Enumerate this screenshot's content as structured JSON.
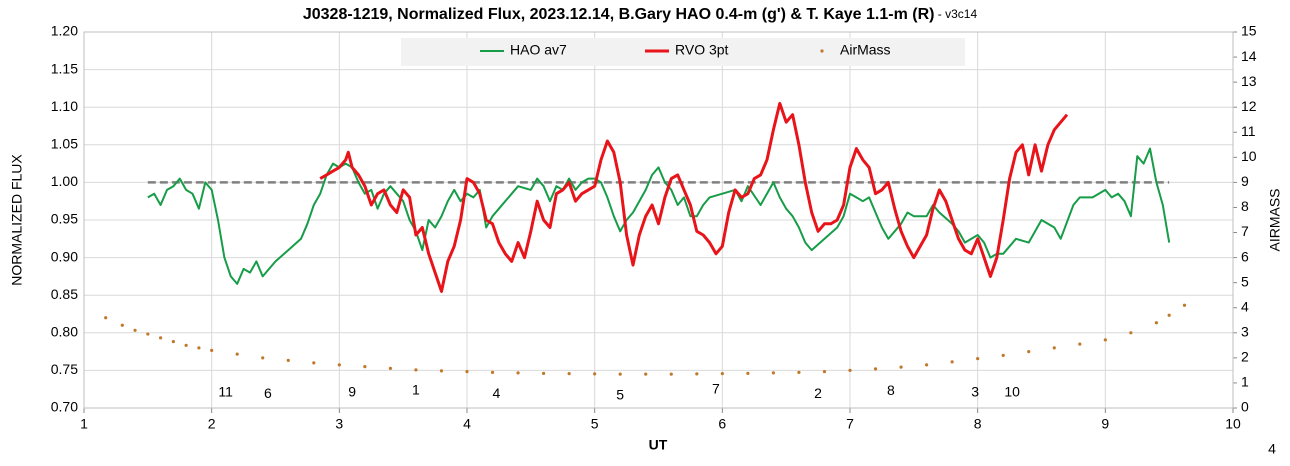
{
  "chart_data": {
    "type": "line",
    "title": "J0328-1219, Normalized Flux, 2023.12.14, B.Gary HAO 0.4-m (g') & T. Kaye 1.1-m (R)",
    "subtitle": " - v3c14",
    "x_label": "UT",
    "y_label": "NORMALIZED FLUX",
    "y2_label": "AIRMASS",
    "corner_note": "4",
    "xlim": [
      1,
      10
    ],
    "xticks": [
      1,
      2,
      3,
      4,
      5,
      6,
      7,
      8,
      9,
      10
    ],
    "ylim": [
      0.7,
      1.2
    ],
    "yticks": [
      {
        "value": 0.7,
        "label": "0.70"
      },
      {
        "value": 0.75,
        "label": "0.75"
      },
      {
        "value": 0.8,
        "label": "0.80"
      },
      {
        "value": 0.85,
        "label": "0.85"
      },
      {
        "value": 0.9,
        "label": "0.90"
      },
      {
        "value": 0.95,
        "label": "0.95"
      },
      {
        "value": 1.0,
        "label": "1.00"
      },
      {
        "value": 1.05,
        "label": "1.05"
      },
      {
        "value": 1.1,
        "label": "1.10"
      },
      {
        "value": 1.15,
        "label": "1.15"
      },
      {
        "value": 1.2,
        "label": "1.20"
      }
    ],
    "y2lim": [
      0,
      15
    ],
    "y2ticks": [
      0,
      1,
      2,
      3,
      4,
      5,
      6,
      7,
      8,
      9,
      10,
      11,
      12,
      13,
      14,
      15
    ],
    "grid": true,
    "legend": "top",
    "reference_line": {
      "value": 1.0,
      "x": [
        1.5,
        9.5
      ],
      "color": "#808080"
    },
    "series": [
      {
        "name": "HAO av7",
        "color": "#179c48",
        "style": "line",
        "x": [
          1.5,
          1.55,
          1.6,
          1.65,
          1.7,
          1.75,
          1.8,
          1.85,
          1.9,
          1.95,
          2.0,
          2.05,
          2.1,
          2.15,
          2.2,
          2.25,
          2.3,
          2.35,
          2.4,
          2.45,
          2.5,
          2.6,
          2.7,
          2.75,
          2.8,
          2.85,
          2.9,
          2.95,
          3.0,
          3.05,
          3.1,
          3.15,
          3.2,
          3.25,
          3.3,
          3.35,
          3.4,
          3.5,
          3.55,
          3.6,
          3.65,
          3.7,
          3.75,
          3.8,
          3.85,
          3.9,
          3.95,
          4.0,
          4.05,
          4.1,
          4.15,
          4.2,
          4.3,
          4.4,
          4.5,
          4.55,
          4.6,
          4.65,
          4.7,
          4.75,
          4.8,
          4.85,
          4.9,
          4.95,
          5.0,
          5.05,
          5.1,
          5.15,
          5.2,
          5.25,
          5.3,
          5.4,
          5.45,
          5.5,
          5.55,
          5.6,
          5.65,
          5.7,
          5.75,
          5.8,
          5.85,
          5.9,
          6.0,
          6.1,
          6.15,
          6.2,
          6.3,
          6.4,
          6.45,
          6.5,
          6.55,
          6.6,
          6.65,
          6.7,
          6.8,
          6.9,
          6.95,
          7.0,
          7.05,
          7.1,
          7.15,
          7.2,
          7.25,
          7.3,
          7.35,
          7.4,
          7.45,
          7.5,
          7.6,
          7.65,
          7.7,
          7.8,
          7.85,
          7.9,
          8.0,
          8.05,
          8.1,
          8.15,
          8.2,
          8.3,
          8.4,
          8.5,
          8.6,
          8.65,
          8.75,
          8.8,
          8.9,
          9.0,
          9.05,
          9.1,
          9.15,
          9.2,
          9.25,
          9.3,
          9.35,
          9.4,
          9.45,
          9.5
        ],
        "values": [
          0.98,
          0.985,
          0.97,
          0.99,
          0.995,
          1.005,
          0.99,
          0.985,
          0.965,
          1.0,
          0.99,
          0.95,
          0.9,
          0.875,
          0.865,
          0.885,
          0.88,
          0.895,
          0.875,
          0.885,
          0.895,
          0.91,
          0.925,
          0.945,
          0.97,
          0.985,
          1.01,
          1.025,
          1.02,
          1.025,
          1.02,
          1.0,
          0.985,
          0.99,
          0.965,
          0.985,
          0.995,
          0.975,
          0.95,
          0.935,
          0.91,
          0.95,
          0.94,
          0.955,
          0.975,
          0.99,
          0.975,
          0.985,
          0.98,
          0.99,
          0.94,
          0.955,
          0.975,
          0.995,
          0.99,
          1.005,
          0.995,
          0.975,
          0.995,
          0.99,
          1.005,
          0.99,
          1.0,
          1.005,
          1.005,
          1.0,
          0.98,
          0.955,
          0.935,
          0.95,
          0.96,
          0.99,
          1.01,
          1.02,
          1.0,
          0.99,
          0.97,
          0.98,
          0.955,
          0.955,
          0.97,
          0.98,
          0.985,
          0.99,
          0.975,
          0.995,
          0.97,
          1.0,
          0.98,
          0.965,
          0.955,
          0.94,
          0.92,
          0.91,
          0.925,
          0.94,
          0.955,
          0.985,
          0.98,
          0.975,
          0.98,
          0.96,
          0.94,
          0.925,
          0.935,
          0.945,
          0.96,
          0.955,
          0.955,
          0.97,
          0.96,
          0.945,
          0.935,
          0.92,
          0.93,
          0.92,
          0.9,
          0.905,
          0.905,
          0.925,
          0.92,
          0.95,
          0.94,
          0.925,
          0.97,
          0.98,
          0.98,
          0.99,
          0.98,
          0.985,
          0.975,
          0.955,
          1.035,
          1.025,
          1.045,
          1.0,
          0.97,
          0.92
        ]
      },
      {
        "name": "RVO 3pt",
        "color": "#e8141a",
        "style": "line",
        "x": [
          2.85,
          2.9,
          2.95,
          3.0,
          3.05,
          3.07,
          3.1,
          3.15,
          3.2,
          3.25,
          3.3,
          3.35,
          3.4,
          3.45,
          3.5,
          3.55,
          3.6,
          3.65,
          3.7,
          3.75,
          3.8,
          3.85,
          3.9,
          3.95,
          4.0,
          4.05,
          4.1,
          4.15,
          4.2,
          4.25,
          4.3,
          4.35,
          4.4,
          4.45,
          4.5,
          4.55,
          4.6,
          4.65,
          4.7,
          4.75,
          4.8,
          4.85,
          4.9,
          5.0,
          5.05,
          5.1,
          5.15,
          5.2,
          5.25,
          5.3,
          5.35,
          5.4,
          5.45,
          5.5,
          5.55,
          5.6,
          5.65,
          5.7,
          5.75,
          5.8,
          5.85,
          5.9,
          5.95,
          6.0,
          6.05,
          6.1,
          6.15,
          6.2,
          6.25,
          6.3,
          6.35,
          6.4,
          6.45,
          6.5,
          6.55,
          6.6,
          6.65,
          6.7,
          6.75,
          6.8,
          6.85,
          6.9,
          6.95,
          7.0,
          7.05,
          7.1,
          7.15,
          7.2,
          7.25,
          7.3,
          7.35,
          7.4,
          7.45,
          7.5,
          7.55,
          7.6,
          7.65,
          7.7,
          7.75,
          7.8,
          7.85,
          7.9,
          7.95,
          8.0,
          8.05,
          8.1,
          8.15,
          8.2,
          8.25,
          8.3,
          8.35,
          8.4,
          8.45,
          8.5,
          8.55,
          8.6,
          8.65,
          8.7
        ],
        "values": [
          1.005,
          1.01,
          1.015,
          1.02,
          1.03,
          1.04,
          1.02,
          1.01,
          0.995,
          0.97,
          0.985,
          0.99,
          0.97,
          0.96,
          0.99,
          0.98,
          0.93,
          0.94,
          0.905,
          0.88,
          0.855,
          0.895,
          0.915,
          0.95,
          1.005,
          1.0,
          0.985,
          0.95,
          0.945,
          0.92,
          0.905,
          0.895,
          0.92,
          0.9,
          0.935,
          0.975,
          0.95,
          0.94,
          0.985,
          0.99,
          1.0,
          0.975,
          0.985,
          0.995,
          1.03,
          1.055,
          1.04,
          1.0,
          0.93,
          0.89,
          0.93,
          0.955,
          0.97,
          0.945,
          0.98,
          1.005,
          1.01,
          0.99,
          0.97,
          0.935,
          0.93,
          0.92,
          0.905,
          0.915,
          0.96,
          0.99,
          0.98,
          0.985,
          1.005,
          1.01,
          1.03,
          1.07,
          1.105,
          1.08,
          1.09,
          1.05,
          1.0,
          0.96,
          0.935,
          0.945,
          0.945,
          0.95,
          0.97,
          1.02,
          1.045,
          1.03,
          1.02,
          0.985,
          0.99,
          1.0,
          0.965,
          0.935,
          0.915,
          0.9,
          0.915,
          0.93,
          0.965,
          0.99,
          0.975,
          0.95,
          0.925,
          0.91,
          0.905,
          0.925,
          0.9,
          0.875,
          0.9,
          0.95,
          1.005,
          1.04,
          1.05,
          1.01,
          1.05,
          1.015,
          1.05,
          1.07,
          1.08,
          1.09
        ]
      },
      {
        "name": "AirMass",
        "color": "#c0782a",
        "style": "markers",
        "axis": "y2",
        "x": [
          1.17,
          1.3,
          1.4,
          1.5,
          1.6,
          1.7,
          1.8,
          1.9,
          2.0,
          2.2,
          2.4,
          2.6,
          2.8,
          3.0,
          3.2,
          3.4,
          3.6,
          3.8,
          4.0,
          4.2,
          4.4,
          4.6,
          4.8,
          5.0,
          5.2,
          5.4,
          5.6,
          5.8,
          6.0,
          6.2,
          6.4,
          6.6,
          6.8,
          7.0,
          7.2,
          7.4,
          7.6,
          7.8,
          8.0,
          8.2,
          8.4,
          8.6,
          8.8,
          9.0,
          9.2,
          9.4,
          9.5,
          9.62
        ],
        "values": [
          3.6,
          3.3,
          3.1,
          2.95,
          2.8,
          2.65,
          2.5,
          2.4,
          2.3,
          2.15,
          2.0,
          1.9,
          1.8,
          1.72,
          1.65,
          1.58,
          1.52,
          1.48,
          1.45,
          1.42,
          1.4,
          1.38,
          1.37,
          1.36,
          1.35,
          1.35,
          1.35,
          1.36,
          1.37,
          1.38,
          1.4,
          1.42,
          1.45,
          1.5,
          1.56,
          1.63,
          1.72,
          1.84,
          1.97,
          2.1,
          2.25,
          2.4,
          2.55,
          2.72,
          3.0,
          3.4,
          3.7,
          4.1
        ]
      }
    ],
    "annotations": [
      {
        "text": "11",
        "x": 2.11,
        "y": 0.72
      },
      {
        "text": "6",
        "x": 2.44,
        "y": 0.718
      },
      {
        "text": "9",
        "x": 3.1,
        "y": 0.72
      },
      {
        "text": "1",
        "x": 3.6,
        "y": 0.723
      },
      {
        "text": "4",
        "x": 4.23,
        "y": 0.718
      },
      {
        "text": "5",
        "x": 5.2,
        "y": 0.716
      },
      {
        "text": "7",
        "x": 5.95,
        "y": 0.724
      },
      {
        "text": "2",
        "x": 6.75,
        "y": 0.718
      },
      {
        "text": "8",
        "x": 7.32,
        "y": 0.722
      },
      {
        "text": "3",
        "x": 7.98,
        "y": 0.72
      },
      {
        "text": "10",
        "x": 8.27,
        "y": 0.72
      }
    ]
  }
}
